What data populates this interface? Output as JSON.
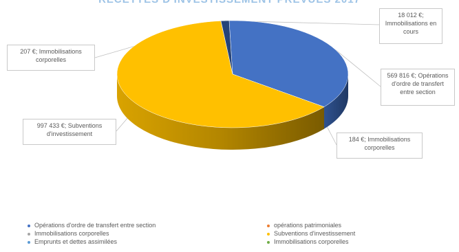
{
  "chart_data": {
    "type": "pie",
    "title": "RECETTES D'INVESTISSEMENT PREVUES 2017",
    "slices": [
      {
        "label": "Opérations d'ordre de transfert entre section",
        "value": 569816,
        "data_label": "569 816 €; Opérations d'ordre de transfert entre section",
        "color": "#4472c4"
      },
      {
        "label": "Immobilisations corporelles",
        "value": 184,
        "data_label": "184 €; Immobilisations corporelles",
        "color": "#1f3864"
      },
      {
        "label": "Subventions d'investissement",
        "value": 997433,
        "data_label": "997 433 €; Subventions d'investissement",
        "color": "#ffc000"
      },
      {
        "label": "Immobilisations corporelles",
        "value": 207,
        "data_label": "207 €; Immobilisations corporelles",
        "color": "#806000"
      },
      {
        "label": "Immobilisations en cours",
        "value": 18012,
        "data_label": "18 012 €; Immobilisations en cours",
        "color": "#264478"
      }
    ],
    "legend_position": "bottom",
    "legend": [
      {
        "label": "Opérations d'ordre de transfert entre section",
        "color": "#4472c4"
      },
      {
        "label": "opérations patrimoniales",
        "color": "#ed7d31"
      },
      {
        "label": "Immobilisations corporelles",
        "color": "#a5a5a5"
      },
      {
        "label": "Subventions d'investissement",
        "color": "#ffc000"
      },
      {
        "label": "Emprunts et dettes assimilées",
        "color": "#5b9bd5"
      },
      {
        "label": "Immobilisations corporelles",
        "color": "#70ad47"
      }
    ]
  }
}
